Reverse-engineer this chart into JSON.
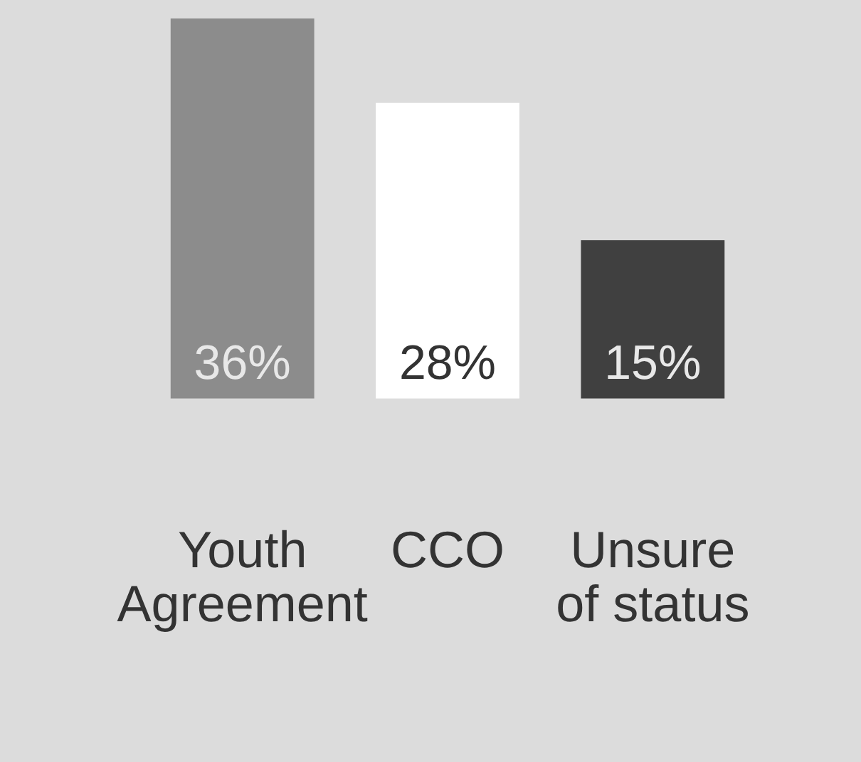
{
  "chart_data": {
    "type": "bar",
    "categories": [
      "Youth Agreement",
      "CCO",
      "Unsure of status"
    ],
    "values": [
      36,
      28,
      15
    ],
    "colors": [
      "#8c8c8c",
      "#ffffff",
      "#404040"
    ],
    "value_labels": [
      "36%",
      "28%",
      "15%"
    ],
    "grid": false,
    "legend": false
  }
}
